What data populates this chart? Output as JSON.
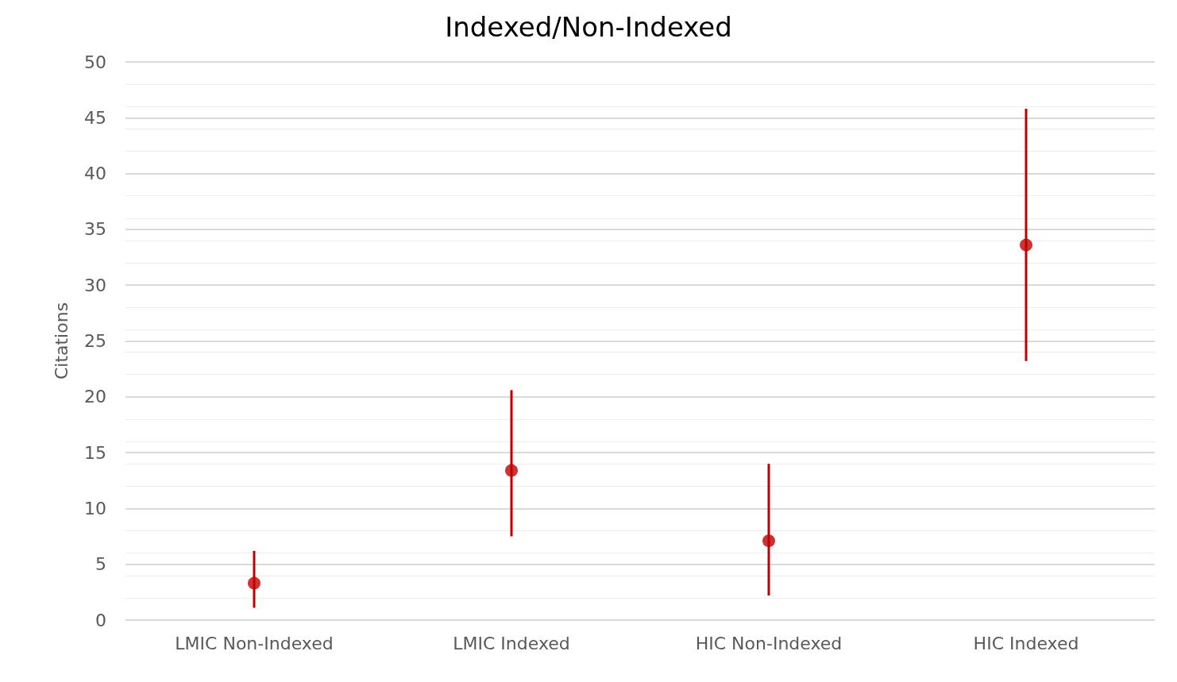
{
  "chart_data": {
    "type": "scatter",
    "title": "Indexed/Non-Indexed",
    "ylabel": "Citations",
    "categories": [
      "LMIC Non-Indexed",
      "LMIC Indexed",
      "HIC Non-Indexed",
      "HIC Indexed"
    ],
    "values": [
      3.3,
      13.4,
      7.1,
      33.6
    ],
    "errors": [
      [
        1.1,
        6.2
      ],
      [
        7.5,
        20.6
      ],
      [
        2.2,
        14.0
      ],
      [
        23.2,
        45.8
      ]
    ],
    "color": "#c00000",
    "ylim": [
      0,
      50
    ],
    "yticks": [
      0,
      5,
      10,
      15,
      20,
      25,
      30,
      35,
      40,
      45,
      50
    ],
    "grid": "y",
    "marker": "circle"
  }
}
